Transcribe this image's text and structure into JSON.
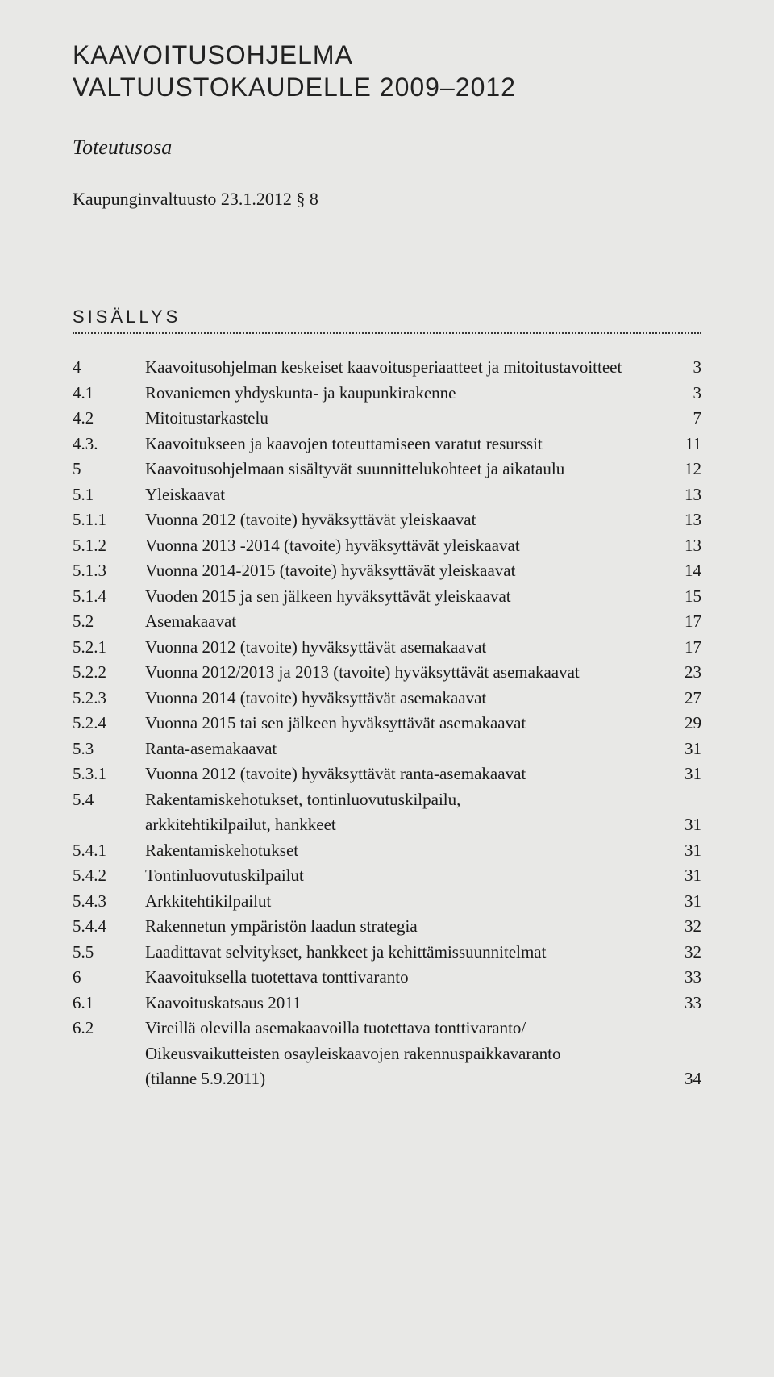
{
  "title_line1": "KAAVOITUSOHJELMA",
  "title_line2": "VALTUUSTOKAUDELLE 2009–2012",
  "subtitle": "Toteutusosa",
  "meeting": "Kaupunginvaltuusto 23.1.2012 § 8",
  "toc_heading": "SISÄLLYS",
  "toc": [
    {
      "num": "4",
      "label": "Kaavoitusohjelman keskeiset kaavoitusperiaatteet ja mitoitustavoitteet",
      "page": "3"
    },
    {
      "num": "4.1",
      "label": "Rovaniemen yhdyskunta- ja kaupunkirakenne",
      "page": "3"
    },
    {
      "num": "4.2",
      "label": "Mitoitustarkastelu",
      "page": "7"
    },
    {
      "num": "4.3.",
      "label": "Kaavoitukseen ja kaavojen toteuttamiseen varatut resurssit",
      "page": "11"
    },
    {
      "num": "5",
      "label": "Kaavoitusohjelmaan sisältyvät suunnittelukohteet ja aikataulu",
      "page": "12"
    },
    {
      "num": "5.1",
      "label": "Yleiskaavat",
      "page": "13"
    },
    {
      "num": "5.1.1",
      "label": "Vuonna 2012 (tavoite) hyväksyttävät yleiskaavat",
      "page": "13"
    },
    {
      "num": "5.1.2",
      "label": "Vuonna 2013 -2014 (tavoite) hyväksyttävät yleiskaavat",
      "page": "13"
    },
    {
      "num": "5.1.3",
      "label": "Vuonna 2014-2015 (tavoite) hyväksyttävät yleiskaavat",
      "page": "14"
    },
    {
      "num": "5.1.4",
      "label": "Vuoden 2015 ja sen jälkeen hyväksyttävät yleiskaavat",
      "page": "15"
    },
    {
      "num": "5.2",
      "label": "Asemakaavat",
      "page": "17"
    },
    {
      "num": "5.2.1",
      "label": "Vuonna 2012 (tavoite) hyväksyttävät asemakaavat",
      "page": "17"
    },
    {
      "num": "5.2.2",
      "label": "Vuonna 2012/2013 ja 2013 (tavoite) hyväksyttävät asemakaavat",
      "page": "23"
    },
    {
      "num": "5.2.3",
      "label": "Vuonna 2014 (tavoite) hyväksyttävät asemakaavat",
      "page": "27"
    },
    {
      "num": "5.2.4",
      "label": "Vuonna 2015 tai sen jälkeen hyväksyttävät asemakaavat",
      "page": "29"
    },
    {
      "num": "5.3",
      "label": "Ranta-asemakaavat",
      "page": "31"
    },
    {
      "num": "5.3.1",
      "label": "Vuonna 2012 (tavoite) hyväksyttävät ranta-asemakaavat",
      "page": "31"
    },
    {
      "num": "5.4",
      "label": "Rakentamiskehotukset, tontinluovutuskilpailu,",
      "page": "",
      "cont": "arkkitehtikilpailut, hankkeet",
      "cont_page": "31"
    },
    {
      "num": "5.4.1",
      "label": "Rakentamiskehotukset",
      "page": "31"
    },
    {
      "num": "5.4.2",
      "label": "Tontinluovutuskilpailut",
      "page": "31"
    },
    {
      "num": "5.4.3",
      "label": "Arkkitehtikilpailut",
      "page": "31"
    },
    {
      "num": "5.4.4",
      "label": "Rakennetun ympäristön laadun strategia",
      "page": "32"
    },
    {
      "num": "5.5",
      "label": "Laadittavat selvitykset, hankkeet ja kehittämissuunnitelmat",
      "page": "32"
    },
    {
      "num": "6",
      "label": "Kaavoituksella tuotettava tonttivaranto",
      "page": "33"
    },
    {
      "num": "6.1",
      "label": "Kaavoituskatsaus 2011",
      "page": "33"
    },
    {
      "num": "6.2",
      "label": "Vireillä olevilla asemakaavoilla tuotettava tonttivaranto/",
      "page": "",
      "cont": "Oikeusvaikutteisten osayleiskaavojen rakennuspaikkavaranto",
      "cont2": "(tilanne 5.9.2011)",
      "cont2_page": "34"
    }
  ]
}
